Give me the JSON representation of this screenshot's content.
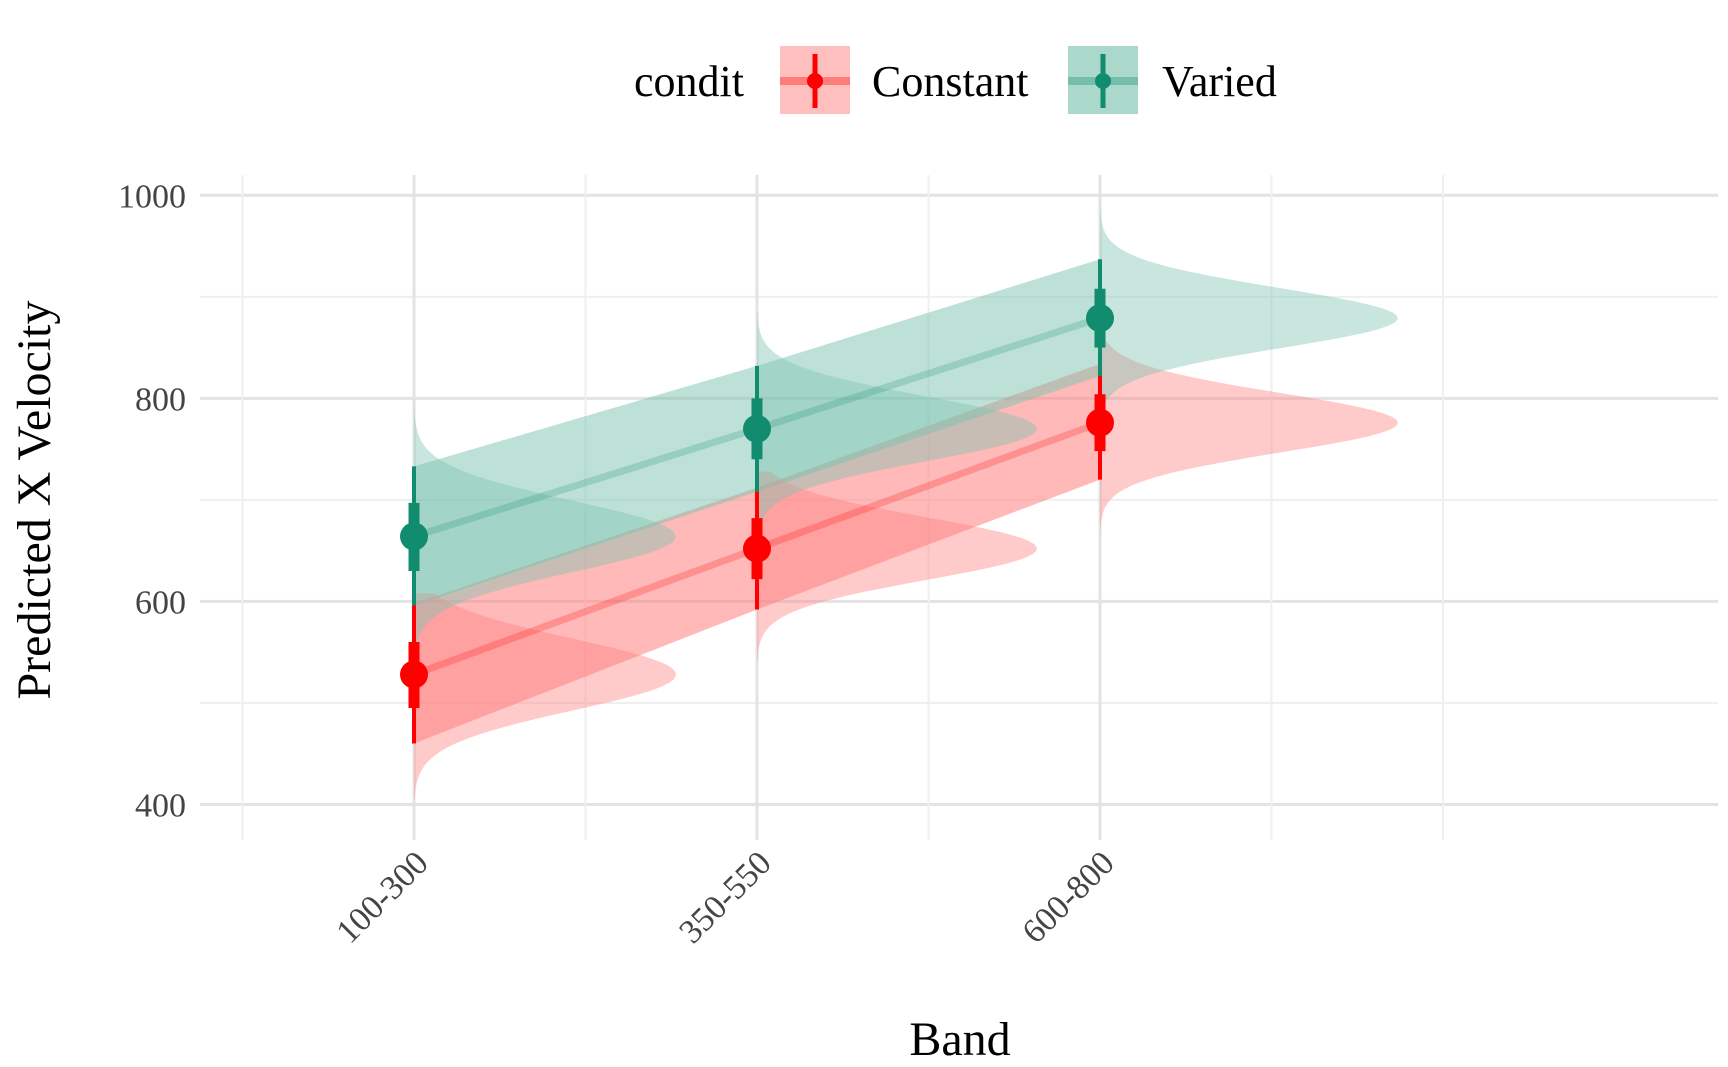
{
  "chart_data": {
    "type": "interval-with-distributions",
    "title": "",
    "xlabel": "Band",
    "ylabel": "Predicted X Velocity",
    "categories": [
      "100-300",
      "350-550",
      "600-800"
    ],
    "ylim": [
      365,
      1020
    ],
    "y_ticks": [
      400,
      600,
      800,
      1000
    ],
    "grid": true,
    "legend": {
      "position": "top",
      "title": "condit",
      "entries": [
        "Constant",
        "Varied"
      ]
    },
    "series": [
      {
        "name": "Constant",
        "color": "#ff0000",
        "fill": "#ff8080",
        "values": [
          528,
          652,
          776
        ],
        "inner_interval": [
          [
            495,
            560
          ],
          [
            622,
            682
          ],
          [
            748,
            804
          ]
        ],
        "outer_interval": [
          [
            460,
            598
          ],
          [
            592,
            712
          ],
          [
            720,
            834
          ]
        ],
        "band_lower": [
          460,
          592,
          720
        ],
        "band_upper": [
          598,
          712,
          834
        ],
        "density_extent": [
          [
            405,
            608
          ],
          [
            540,
            728
          ],
          [
            662,
            856
          ]
        ]
      },
      {
        "name": "Varied",
        "color": "#118c6e",
        "fill": "#7cc4b0",
        "values": [
          664,
          770,
          879
        ],
        "inner_interval": [
          [
            630,
            697
          ],
          [
            740,
            800
          ],
          [
            850,
            908
          ]
        ],
        "outer_interval": [
          [
            596,
            733
          ],
          [
            708,
            832
          ],
          [
            822,
            937
          ]
        ],
        "band_lower": [
          596,
          708,
          822
        ],
        "band_upper": [
          733,
          832,
          937
        ],
        "density_extent": [
          [
            550,
            800
          ],
          [
            668,
            885
          ],
          [
            786,
            990
          ]
        ]
      }
    ]
  }
}
